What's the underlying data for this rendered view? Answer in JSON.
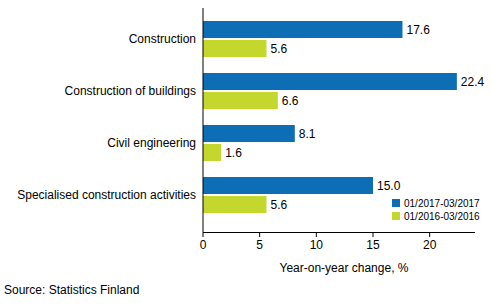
{
  "chart_data": {
    "type": "bar",
    "orientation": "horizontal",
    "categories": [
      "Construction",
      "Construction of buildings",
      "Civil engineering",
      "Specialised construction activities"
    ],
    "series": [
      {
        "name": "01/2017-03/2017",
        "color": "#0d6db5",
        "values": [
          17.6,
          22.4,
          8.1,
          15.0
        ],
        "value_labels": [
          "17.6",
          "22.4",
          "8.1",
          "15.0"
        ]
      },
      {
        "name": "01/2016-03/2016",
        "color": "#c3d72d",
        "values": [
          5.6,
          6.6,
          1.6,
          5.6
        ]
      }
    ],
    "xlabel": "Year-on-year change, %",
    "xlim": [
      0,
      24
    ],
    "xticks": [
      0,
      5,
      10,
      15,
      20
    ],
    "grid": false,
    "data_labels": true,
    "legend": "lower right",
    "source": "Source: Statistics Finland"
  }
}
